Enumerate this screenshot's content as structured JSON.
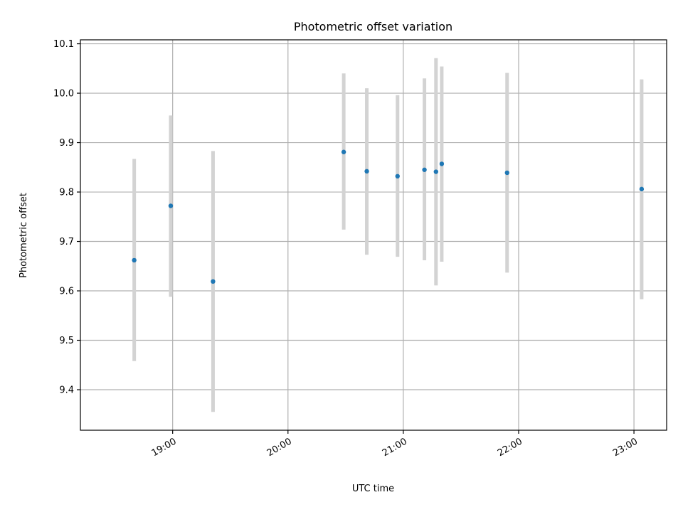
{
  "chart_data": {
    "type": "scatter",
    "title": "Photometric offset variation",
    "xlabel": "UTC time",
    "ylabel": "Photometric offset",
    "xlim": [
      "18:12",
      "23:17"
    ],
    "ylim": [
      9.318,
      10.108
    ],
    "x_ticks": [
      "19:00",
      "20:00",
      "21:00",
      "22:00",
      "23:00"
    ],
    "y_ticks": [
      9.4,
      9.5,
      9.6,
      9.7,
      9.8,
      9.9,
      10.0,
      10.1
    ],
    "y_tick_labels": [
      "9.4",
      "9.5",
      "9.6",
      "9.7",
      "9.8",
      "9.9",
      "10.0",
      "10.1"
    ],
    "grid": true,
    "errorbar_color": "#d3d3d3",
    "marker_color": "#1f77b4",
    "points": [
      {
        "x": "18:40",
        "y": 9.662,
        "ylow": 9.458,
        "yhigh": 9.867
      },
      {
        "x": "18:59",
        "y": 9.772,
        "ylow": 9.588,
        "yhigh": 9.955
      },
      {
        "x": "19:21",
        "y": 9.619,
        "ylow": 9.355,
        "yhigh": 9.883
      },
      {
        "x": "20:29",
        "y": 9.881,
        "ylow": 9.724,
        "yhigh": 10.04
      },
      {
        "x": "20:41",
        "y": 9.842,
        "ylow": 9.673,
        "yhigh": 10.01
      },
      {
        "x": "20:57",
        "y": 9.832,
        "ylow": 9.669,
        "yhigh": 9.996
      },
      {
        "x": "21:11",
        "y": 9.845,
        "ylow": 9.662,
        "yhigh": 10.03
      },
      {
        "x": "21:17",
        "y": 9.841,
        "ylow": 9.611,
        "yhigh": 10.071
      },
      {
        "x": "21:20",
        "y": 9.857,
        "ylow": 9.659,
        "yhigh": 10.054
      },
      {
        "x": "21:54",
        "y": 9.839,
        "ylow": 9.637,
        "yhigh": 10.041
      },
      {
        "x": "23:04",
        "y": 9.806,
        "ylow": 9.583,
        "yhigh": 10.028
      }
    ]
  }
}
